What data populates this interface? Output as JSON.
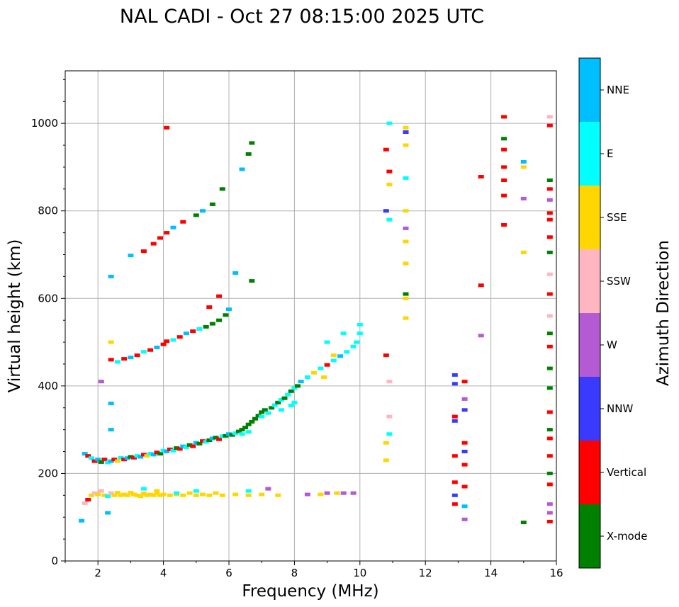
{
  "chart_data": {
    "type": "scatter",
    "title": "NAL CADI - Oct 27 08:15:00 2025 UTC",
    "xlabel": "Frequency (MHz)",
    "ylabel": "Virtual height (km)",
    "xlim": [
      1.0,
      16.0
    ],
    "ylim": [
      0,
      1120
    ],
    "xticks": [
      2,
      4,
      6,
      8,
      10,
      12,
      14,
      16
    ],
    "yticks": [
      0,
      200,
      400,
      600,
      800,
      1000
    ],
    "grid": true,
    "colorbar": {
      "label": "Azimuth Direction",
      "position": "right",
      "categories": [
        {
          "name": "X-mode",
          "color": "#008000"
        },
        {
          "name": "Vertical",
          "color": "#ff0000"
        },
        {
          "name": "NNW",
          "color": "#3a3aff"
        },
        {
          "name": "W",
          "color": "#b45ad2"
        },
        {
          "name": "SSW",
          "color": "#ffb6c1"
        },
        {
          "name": "SSE",
          "color": "#ffd700"
        },
        {
          "name": "E",
          "color": "#00ffff"
        },
        {
          "name": "NNE",
          "color": "#00bfff"
        }
      ]
    },
    "points": [
      [
        1.6,
        245,
        "NNE"
      ],
      [
        1.7,
        240,
        "Vertical"
      ],
      [
        1.8,
        235,
        "E"
      ],
      [
        1.9,
        228,
        "Vertical"
      ],
      [
        2.0,
        232,
        "NNE"
      ],
      [
        2.1,
        226,
        "X-mode"
      ],
      [
        2.2,
        232,
        "Vertical"
      ],
      [
        2.3,
        225,
        "E"
      ],
      [
        2.4,
        228,
        "NNE"
      ],
      [
        2.5,
        232,
        "Vertical"
      ],
      [
        2.6,
        228,
        "SSE"
      ],
      [
        2.7,
        236,
        "E"
      ],
      [
        2.8,
        232,
        "Vertical"
      ],
      [
        2.9,
        235,
        "NNE"
      ],
      [
        3.0,
        238,
        "X-mode"
      ],
      [
        3.1,
        236,
        "Vertical"
      ],
      [
        3.2,
        240,
        "E"
      ],
      [
        3.3,
        238,
        "NNE"
      ],
      [
        3.4,
        243,
        "Vertical"
      ],
      [
        3.5,
        240,
        "SSE"
      ],
      [
        3.6,
        245,
        "E"
      ],
      [
        3.7,
        243,
        "NNE"
      ],
      [
        3.8,
        248,
        "Vertical"
      ],
      [
        3.9,
        245,
        "X-mode"
      ],
      [
        4.0,
        252,
        "E"
      ],
      [
        4.1,
        250,
        "NNE"
      ],
      [
        4.2,
        255,
        "Vertical"
      ],
      [
        4.3,
        252,
        "E"
      ],
      [
        4.4,
        258,
        "X-mode"
      ],
      [
        4.5,
        256,
        "Vertical"
      ],
      [
        4.6,
        262,
        "NNE"
      ],
      [
        4.7,
        260,
        "E"
      ],
      [
        4.8,
        265,
        "X-mode"
      ],
      [
        4.9,
        262,
        "Vertical"
      ],
      [
        5.0,
        270,
        "NNE"
      ],
      [
        5.1,
        268,
        "X-mode"
      ],
      [
        5.2,
        274,
        "Vertical"
      ],
      [
        5.3,
        272,
        "E"
      ],
      [
        5.4,
        276,
        "X-mode"
      ],
      [
        5.5,
        280,
        "NNE"
      ],
      [
        5.6,
        282,
        "X-mode"
      ],
      [
        5.7,
        278,
        "Vertical"
      ],
      [
        5.8,
        285,
        "E"
      ],
      [
        5.9,
        286,
        "X-mode"
      ],
      [
        6.0,
        290,
        "NNE"
      ],
      [
        6.1,
        288,
        "X-mode"
      ],
      [
        6.2,
        292,
        "E"
      ],
      [
        6.3,
        296,
        "X-mode"
      ],
      [
        6.4,
        300,
        "X-mode"
      ],
      [
        6.5,
        305,
        "X-mode"
      ],
      [
        6.6,
        312,
        "X-mode"
      ],
      [
        6.7,
        318,
        "X-mode"
      ],
      [
        6.8,
        325,
        "X-mode"
      ],
      [
        6.9,
        332,
        "X-mode"
      ],
      [
        7.0,
        340,
        "X-mode"
      ],
      [
        7.1,
        345,
        "X-mode"
      ],
      [
        7.2,
        338,
        "E"
      ],
      [
        7.3,
        350,
        "X-mode"
      ],
      [
        7.4,
        356,
        "E"
      ],
      [
        7.5,
        362,
        "X-mode"
      ],
      [
        7.6,
        368,
        "E"
      ],
      [
        7.7,
        372,
        "X-mode"
      ],
      [
        7.8,
        380,
        "E"
      ],
      [
        7.9,
        388,
        "X-mode"
      ],
      [
        8.0,
        395,
        "E"
      ],
      [
        8.1,
        400,
        "X-mode"
      ],
      [
        6.4,
        290,
        "E"
      ],
      [
        6.6,
        295,
        "E"
      ],
      [
        7.0,
        330,
        "E"
      ],
      [
        7.6,
        345,
        "E"
      ],
      [
        7.9,
        355,
        "E"
      ],
      [
        8.0,
        362,
        "E"
      ],
      [
        1.6,
        132,
        "SSW"
      ],
      [
        1.7,
        140,
        "Vertical"
      ],
      [
        1.8,
        150,
        "SSE"
      ],
      [
        1.9,
        155,
        "SSW"
      ],
      [
        2.0,
        152,
        "SSE"
      ],
      [
        2.1,
        160,
        "SSW"
      ],
      [
        2.2,
        150,
        "SSE"
      ],
      [
        2.3,
        148,
        "E"
      ],
      [
        2.4,
        155,
        "SSW"
      ],
      [
        2.5,
        150,
        "SSE"
      ],
      [
        2.6,
        156,
        "SSE"
      ],
      [
        2.7,
        150,
        "SSE"
      ],
      [
        2.8,
        152,
        "SSE"
      ],
      [
        2.9,
        150,
        "SSE"
      ],
      [
        3.0,
        156,
        "SSE"
      ],
      [
        3.1,
        152,
        "SSE"
      ],
      [
        3.2,
        150,
        "SSE"
      ],
      [
        3.3,
        148,
        "SSE"
      ],
      [
        3.4,
        154,
        "SSE"
      ],
      [
        3.5,
        150,
        "SSE"
      ],
      [
        3.6,
        152,
        "SSE"
      ],
      [
        3.7,
        150,
        "SSE"
      ],
      [
        3.8,
        155,
        "SSE"
      ],
      [
        3.9,
        150,
        "SSE"
      ],
      [
        4.0,
        152,
        "SSE"
      ],
      [
        4.2,
        150,
        "SSE"
      ],
      [
        4.4,
        152,
        "SSE"
      ],
      [
        4.6,
        150,
        "SSE"
      ],
      [
        4.8,
        155,
        "SSE"
      ],
      [
        5.0,
        150,
        "SSE"
      ],
      [
        5.2,
        152,
        "SSE"
      ],
      [
        5.4,
        150,
        "SSE"
      ],
      [
        5.6,
        155,
        "SSE"
      ],
      [
        5.8,
        150,
        "SSE"
      ],
      [
        6.2,
        152,
        "SSE"
      ],
      [
        6.6,
        150,
        "SSE"
      ],
      [
        7.0,
        152,
        "SSE"
      ],
      [
        7.5,
        150,
        "SSE"
      ],
      [
        8.4,
        152,
        "W"
      ],
      [
        8.8,
        152,
        "SSE"
      ],
      [
        9.0,
        155,
        "W"
      ],
      [
        9.3,
        155,
        "SSE"
      ],
      [
        9.5,
        155,
        "W"
      ],
      [
        9.8,
        155,
        "W"
      ],
      [
        3.4,
        165,
        "E"
      ],
      [
        3.8,
        160,
        "SSE"
      ],
      [
        4.4,
        155,
        "E"
      ],
      [
        5.0,
        160,
        "E"
      ],
      [
        6.6,
        160,
        "E"
      ],
      [
        7.2,
        165,
        "W"
      ],
      [
        2.4,
        460,
        "Vertical"
      ],
      [
        2.6,
        455,
        "E"
      ],
      [
        2.8,
        462,
        "Vertical"
      ],
      [
        3.0,
        465,
        "NNE"
      ],
      [
        3.2,
        470,
        "Vertical"
      ],
      [
        3.4,
        478,
        "E"
      ],
      [
        3.6,
        482,
        "Vertical"
      ],
      [
        3.8,
        488,
        "NNE"
      ],
      [
        4.0,
        495,
        "Vertical"
      ],
      [
        4.1,
        502,
        "Vertical"
      ],
      [
        4.3,
        505,
        "E"
      ],
      [
        4.5,
        512,
        "Vertical"
      ],
      [
        4.7,
        520,
        "NNE"
      ],
      [
        4.9,
        525,
        "Vertical"
      ],
      [
        5.1,
        530,
        "E"
      ],
      [
        5.3,
        535,
        "X-mode"
      ],
      [
        5.5,
        542,
        "X-mode"
      ],
      [
        5.7,
        550,
        "X-mode"
      ],
      [
        5.9,
        562,
        "X-mode"
      ],
      [
        6.0,
        575,
        "NNE"
      ],
      [
        5.4,
        580,
        "Vertical"
      ],
      [
        5.7,
        605,
        "Vertical"
      ],
      [
        3.0,
        698,
        "NNE"
      ],
      [
        3.4,
        708,
        "Vertical"
      ],
      [
        3.7,
        725,
        "Vertical"
      ],
      [
        3.9,
        738,
        "Vertical"
      ],
      [
        4.1,
        750,
        "Vertical"
      ],
      [
        4.3,
        762,
        "NNE"
      ],
      [
        4.6,
        775,
        "Vertical"
      ],
      [
        5.0,
        790,
        "X-mode"
      ],
      [
        5.2,
        800,
        "NNE"
      ],
      [
        5.5,
        815,
        "X-mode"
      ],
      [
        5.8,
        850,
        "X-mode"
      ],
      [
        6.4,
        895,
        "NNE"
      ],
      [
        6.6,
        930,
        "X-mode"
      ],
      [
        6.7,
        955,
        "X-mode"
      ],
      [
        4.1,
        990,
        "Vertical"
      ],
      [
        2.4,
        650,
        "NNE"
      ],
      [
        6.2,
        658,
        "NNE"
      ],
      [
        6.7,
        640,
        "X-mode"
      ],
      [
        8.2,
        410,
        "NNE"
      ],
      [
        8.4,
        420,
        "E"
      ],
      [
        8.6,
        430,
        "SSE"
      ],
      [
        8.8,
        440,
        "E"
      ],
      [
        9.0,
        448,
        "Vertical"
      ],
      [
        9.2,
        458,
        "E"
      ],
      [
        9.4,
        468,
        "NNE"
      ],
      [
        9.6,
        478,
        "E"
      ],
      [
        9.8,
        490,
        "E"
      ],
      [
        9.9,
        500,
        "E"
      ],
      [
        10.0,
        520,
        "E"
      ],
      [
        10.0,
        540,
        "E"
      ],
      [
        9.0,
        500,
        "E"
      ],
      [
        9.5,
        520,
        "E"
      ],
      [
        8.9,
        420,
        "SSE"
      ],
      [
        9.2,
        470,
        "SSE"
      ],
      [
        10.8,
        230,
        "SSE"
      ],
      [
        10.8,
        270,
        "SSE"
      ],
      [
        10.9,
        290,
        "E"
      ],
      [
        10.9,
        330,
        "SSW"
      ],
      [
        10.9,
        410,
        "SSW"
      ],
      [
        10.8,
        470,
        "Vertical"
      ],
      [
        10.8,
        800,
        "NNW"
      ],
      [
        10.9,
        780,
        "E"
      ],
      [
        10.8,
        940,
        "Vertical"
      ],
      [
        10.9,
        890,
        "Vertical"
      ],
      [
        10.9,
        860,
        "SSE"
      ],
      [
        10.9,
        1000,
        "E"
      ],
      [
        11.4,
        555,
        "SSE"
      ],
      [
        11.4,
        600,
        "SSE"
      ],
      [
        11.4,
        610,
        "X-mode"
      ],
      [
        11.4,
        680,
        "SSE"
      ],
      [
        11.4,
        730,
        "SSE"
      ],
      [
        11.4,
        760,
        "W"
      ],
      [
        11.4,
        800,
        "SSE"
      ],
      [
        11.4,
        875,
        "E"
      ],
      [
        11.4,
        950,
        "SSE"
      ],
      [
        11.4,
        990,
        "SSE"
      ],
      [
        11.4,
        980,
        "NNW"
      ],
      [
        12.9,
        130,
        "Vertical"
      ],
      [
        12.9,
        150,
        "NNW"
      ],
      [
        12.9,
        180,
        "Vertical"
      ],
      [
        12.9,
        240,
        "Vertical"
      ],
      [
        12.9,
        320,
        "NNW"
      ],
      [
        12.9,
        330,
        "Vertical"
      ],
      [
        12.9,
        405,
        "NNW"
      ],
      [
        12.9,
        425,
        "NNW"
      ],
      [
        13.2,
        95,
        "W"
      ],
      [
        13.2,
        125,
        "NNE"
      ],
      [
        13.2,
        170,
        "Vertical"
      ],
      [
        13.2,
        220,
        "Vertical"
      ],
      [
        13.2,
        250,
        "NNW"
      ],
      [
        13.2,
        270,
        "Vertical"
      ],
      [
        13.2,
        345,
        "NNW"
      ],
      [
        13.2,
        370,
        "W"
      ],
      [
        13.2,
        410,
        "Vertical"
      ],
      [
        13.7,
        515,
        "W"
      ],
      [
        13.7,
        630,
        "Vertical"
      ],
      [
        13.7,
        878,
        "Vertical"
      ],
      [
        14.4,
        835,
        "Vertical"
      ],
      [
        14.4,
        870,
        "Vertical"
      ],
      [
        14.4,
        900,
        "Vertical"
      ],
      [
        14.4,
        940,
        "Vertical"
      ],
      [
        14.4,
        965,
        "X-mode"
      ],
      [
        14.4,
        1015,
        "Vertical"
      ],
      [
        14.4,
        768,
        "Vertical"
      ],
      [
        15.0,
        88,
        "X-mode"
      ],
      [
        15.0,
        705,
        "SSE"
      ],
      [
        15.0,
        828,
        "W"
      ],
      [
        15.0,
        900,
        "SSE"
      ],
      [
        15.0,
        912,
        "NNE"
      ],
      [
        15.8,
        90,
        "Vertical"
      ],
      [
        15.8,
        110,
        "W"
      ],
      [
        15.8,
        130,
        "W"
      ],
      [
        15.8,
        175,
        "Vertical"
      ],
      [
        15.8,
        200,
        "X-mode"
      ],
      [
        15.8,
        240,
        "Vertical"
      ],
      [
        15.8,
        280,
        "Vertical"
      ],
      [
        15.8,
        300,
        "X-mode"
      ],
      [
        15.8,
        340,
        "Vertical"
      ],
      [
        15.8,
        395,
        "X-mode"
      ],
      [
        15.8,
        440,
        "X-mode"
      ],
      [
        15.8,
        490,
        "Vertical"
      ],
      [
        15.8,
        520,
        "X-mode"
      ],
      [
        15.8,
        560,
        "SSW"
      ],
      [
        15.8,
        610,
        "Vertical"
      ],
      [
        15.8,
        655,
        "SSW"
      ],
      [
        15.8,
        705,
        "X-mode"
      ],
      [
        15.8,
        740,
        "Vertical"
      ],
      [
        15.8,
        780,
        "Vertical"
      ],
      [
        15.8,
        795,
        "Vertical"
      ],
      [
        15.8,
        825,
        "W"
      ],
      [
        15.8,
        850,
        "Vertical"
      ],
      [
        15.8,
        870,
        "X-mode"
      ],
      [
        15.8,
        995,
        "Vertical"
      ],
      [
        15.8,
        1015,
        "SSW"
      ],
      [
        2.4,
        360,
        "NNE"
      ],
      [
        2.4,
        300,
        "NNE"
      ],
      [
        2.3,
        110,
        "NNE"
      ],
      [
        1.5,
        92,
        "NNE"
      ],
      [
        2.1,
        410,
        "W"
      ],
      [
        2.4,
        500,
        "SSE"
      ]
    ]
  }
}
